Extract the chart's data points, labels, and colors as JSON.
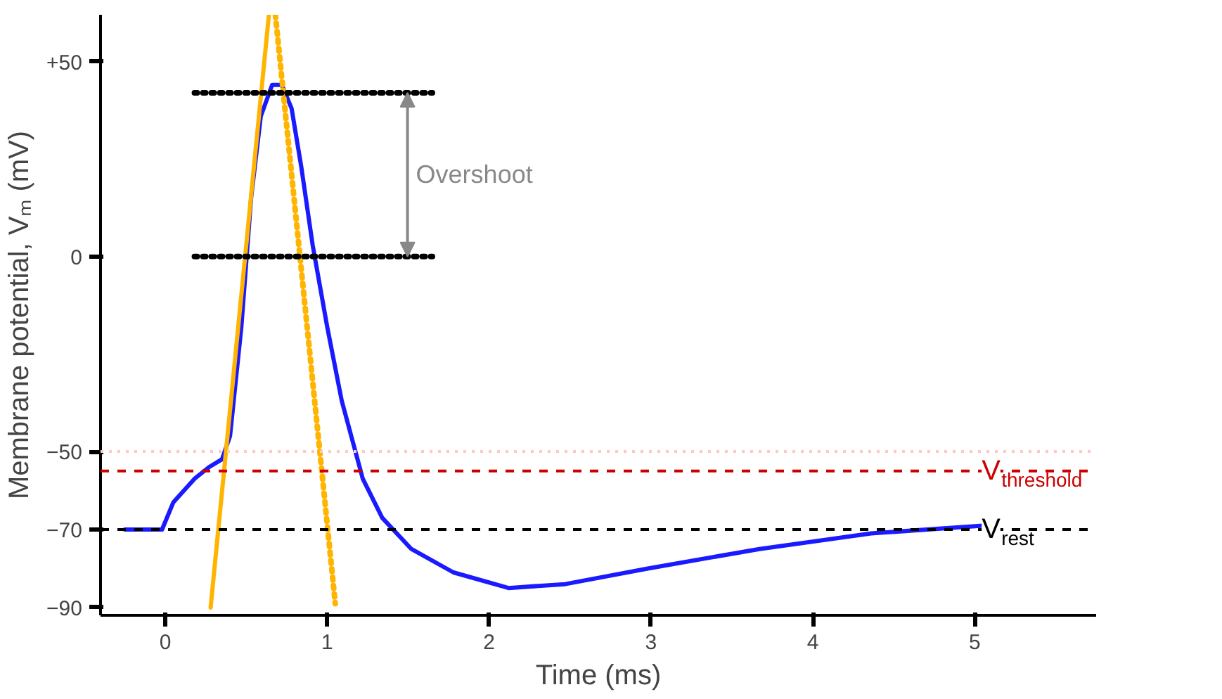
{
  "chart_data": {
    "type": "line",
    "xlabel": "Time (ms)",
    "ylabel": "Membrane potential, Vₘ (mV)",
    "xlim": [
      -0.4,
      5.75
    ],
    "ylim": [
      -92,
      62
    ],
    "xticks": [
      0,
      1,
      2,
      3,
      4,
      5
    ],
    "yticks": [
      {
        "value": 50,
        "label": "+50"
      },
      0,
      -50,
      -70,
      -90
    ],
    "grid": false,
    "line_style": "solid",
    "marker": "none",
    "series": [
      {
        "color": "#1a1aff",
        "x": [
          -0.25,
          -0.02,
          0.05,
          0.18,
          0.27,
          0.35,
          0.4,
          0.47,
          0.53,
          0.59,
          0.66,
          0.72,
          0.78,
          0.84,
          0.91,
          1.0,
          1.09,
          1.22,
          1.34,
          1.52,
          1.78,
          2.12,
          2.47,
          2.98,
          3.67,
          4.36,
          5.05
        ],
        "values": [
          -70,
          -70,
          -63,
          -57,
          -54,
          -52,
          -46,
          -18,
          15,
          36,
          44,
          44,
          38,
          23,
          3,
          -18,
          -37,
          -57,
          -67,
          -75,
          -81,
          -85,
          -84,
          -80,
          -75,
          -71,
          -69
        ]
      },
      {
        "color": "#ffb400",
        "x": [
          0.28,
          0.64
        ],
        "values": [
          -90,
          62
        ]
      },
      {
        "color": "#ffb400",
        "line_style": "dotted",
        "x": [
          0.68,
          1.05
        ],
        "values": [
          62,
          -89
        ]
      },
      {
        "color": "#000000",
        "line_style": "dotted",
        "x": [
          0.18,
          1.65
        ],
        "values": [
          42,
          42
        ]
      },
      {
        "color": "#000000",
        "line_style": "dotted",
        "x": [
          0.18,
          1.65
        ],
        "values": [
          0,
          0
        ]
      }
    ],
    "ref_lines": [
      {
        "axis": "y",
        "value": -50,
        "color": "#ffc8c8",
        "line_style": "dotted"
      },
      {
        "axis": "y",
        "value": -55,
        "color": "#cc0000",
        "line_style": "dashed",
        "label": "V$_{threshold}$"
      },
      {
        "axis": "y",
        "value": -70,
        "color": "#000000",
        "line_style": "dashed",
        "label": "V$_{rest}$"
      }
    ],
    "annotations": [
      "Overshoot"
    ]
  }
}
